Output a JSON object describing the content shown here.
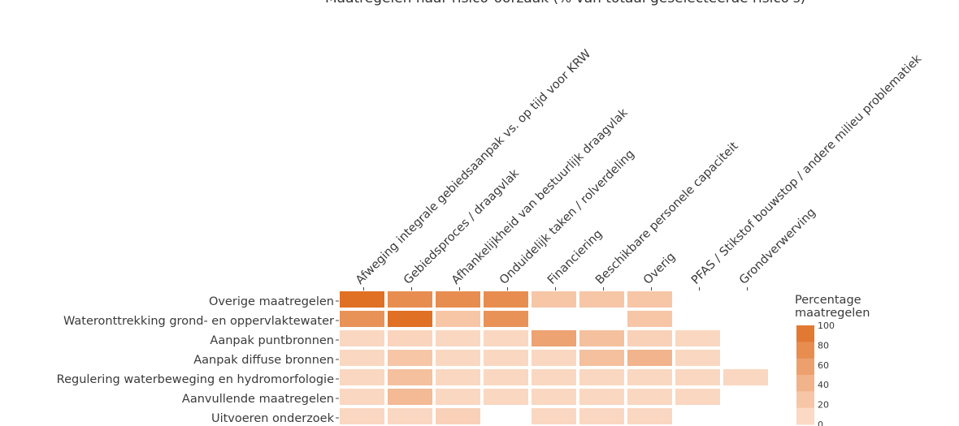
{
  "chart_data": {
    "type": "heatmap",
    "title": "Maatregelen naar risico-oorzaak (% van totaal geselecteerde risico's)",
    "rows": [
      "Overige maatregelen",
      "Wateronttrekking grond- en oppervlaktewater",
      "Aanpak puntbronnen",
      "Aanpak diffuse bronnen",
      "Regulering waterbeweging en hydromorfologie",
      "Aanvullende maatregelen",
      "Uitvoeren onderzoek"
    ],
    "columns": [
      "Afweging integrale gebiedsaanpak vs. op tijd voor KRW",
      "Gebiedsproces / draagvlak",
      "Afhankelijkheid van bestuurlijk draagvlak",
      "Onduidelijk taken / rolverdeling",
      "Financiering",
      "Beschikbare personele capaciteit",
      "Overig",
      "PFAS / Stikstof bouwstop / andere milieu problematiek",
      "Grondverwerving"
    ],
    "values": [
      [
        100,
        75,
        75,
        75,
        25,
        25,
        25,
        null,
        null
      ],
      [
        70,
        100,
        25,
        70,
        null,
        null,
        25,
        null,
        null
      ],
      [
        10,
        12,
        10,
        10,
        55,
        30,
        15,
        10,
        null
      ],
      [
        10,
        25,
        10,
        10,
        10,
        30,
        40,
        10,
        null
      ],
      [
        10,
        30,
        10,
        10,
        10,
        10,
        10,
        10,
        10
      ],
      [
        10,
        35,
        10,
        10,
        10,
        10,
        10,
        10,
        null
      ],
      [
        10,
        10,
        15,
        null,
        10,
        10,
        10,
        null,
        null
      ]
    ],
    "legend": {
      "title": "Percentage maatregelen",
      "ticks": [
        "100",
        "80",
        "60",
        "40",
        "20",
        "0"
      ],
      "range": [
        0,
        100
      ],
      "color_low": "#fde2d2",
      "color_high": "#e07024"
    },
    "grid": false,
    "legend_position": "right"
  }
}
